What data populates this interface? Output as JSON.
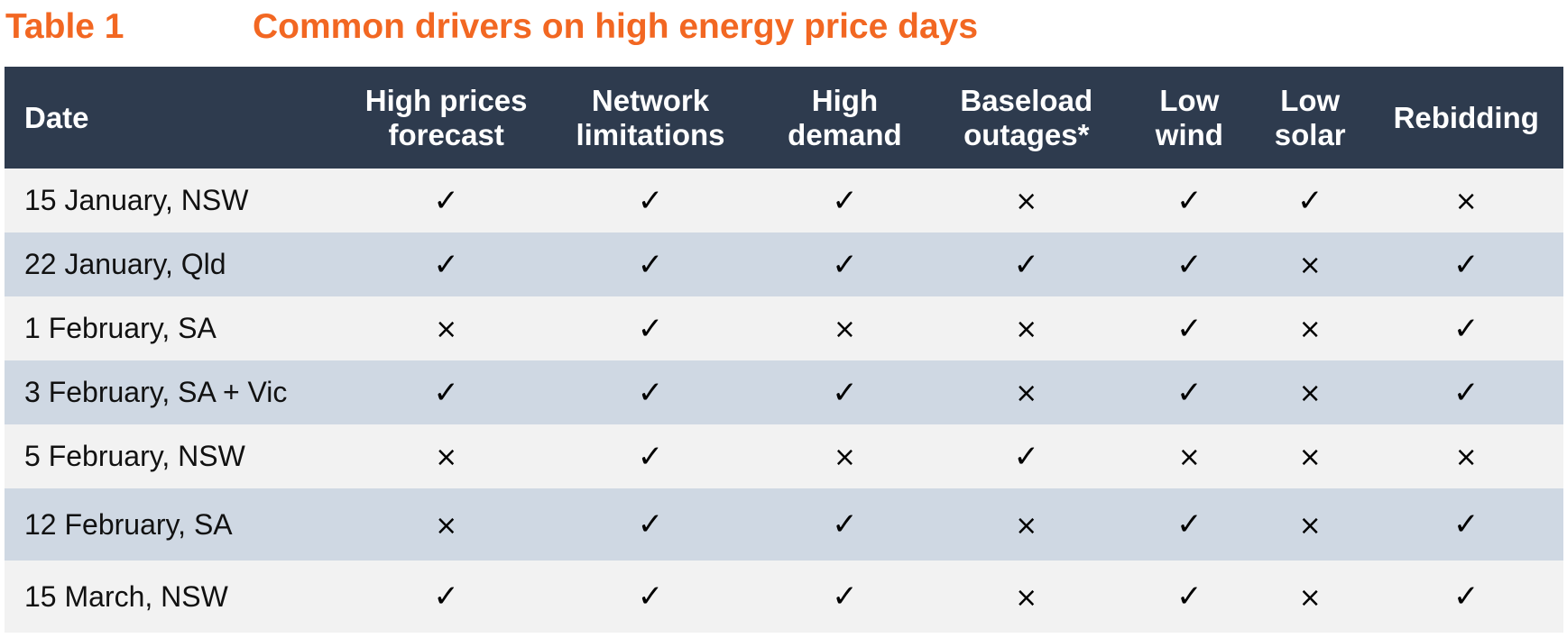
{
  "title": {
    "label": "Table 1",
    "text": "Common drivers on high energy price days"
  },
  "colors": {
    "title": "#F26722",
    "header_bg": "#2E3B4E",
    "row_light": "#F2F2F2",
    "row_dark": "#CFD8E3"
  },
  "marks": {
    "yes": "✓",
    "no": "×"
  },
  "table": {
    "headers": [
      [
        "Date"
      ],
      [
        "High prices",
        "forecast"
      ],
      [
        "Network",
        "limitations"
      ],
      [
        "High",
        "demand"
      ],
      [
        "Baseload",
        "outages*"
      ],
      [
        "Low",
        "wind"
      ],
      [
        "Low",
        "solar"
      ],
      [
        "Rebidding"
      ]
    ],
    "rows": [
      {
        "date": "15 January, NSW",
        "values": [
          true,
          true,
          true,
          false,
          true,
          true,
          false
        ]
      },
      {
        "date": "22 January, Qld",
        "values": [
          true,
          true,
          true,
          true,
          true,
          false,
          true
        ]
      },
      {
        "date": "1 February, SA",
        "values": [
          false,
          true,
          false,
          false,
          true,
          false,
          true
        ]
      },
      {
        "date": "3 February, SA + Vic",
        "values": [
          true,
          true,
          true,
          false,
          true,
          false,
          true
        ]
      },
      {
        "date": "5 February, NSW",
        "values": [
          false,
          true,
          false,
          true,
          false,
          false,
          false
        ]
      },
      {
        "date": "12 February, SA",
        "values": [
          false,
          true,
          true,
          false,
          true,
          false,
          true
        ]
      },
      {
        "date": "15 March, NSW",
        "values": [
          true,
          true,
          true,
          false,
          true,
          false,
          true
        ]
      }
    ]
  }
}
